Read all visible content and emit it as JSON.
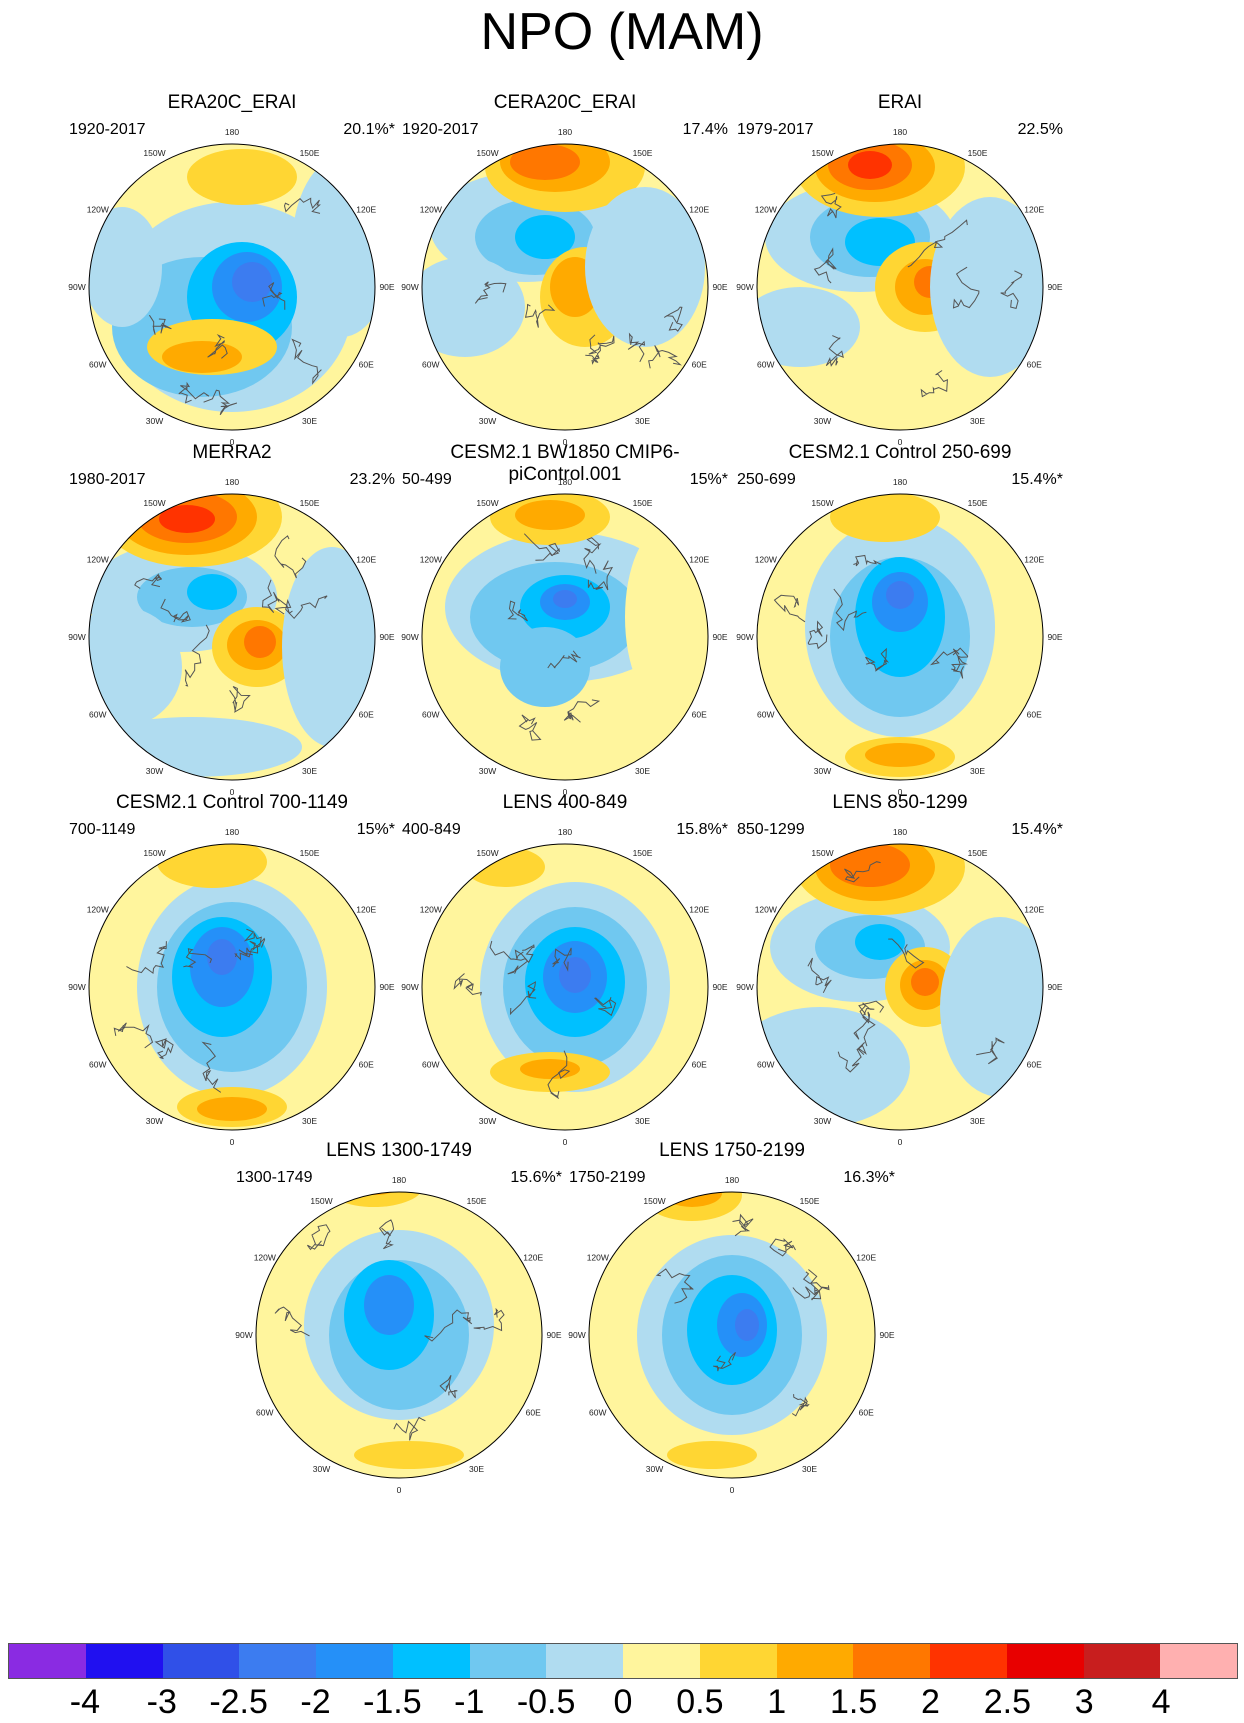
{
  "title": "NPO (MAM)",
  "panels": [
    {
      "title": "ERA20C_ERAI",
      "period": "1920-2017",
      "variance": "20.1%*"
    },
    {
      "title": "CERA20C_ERAI",
      "period": "1920-2017",
      "variance": "17.4%"
    },
    {
      "title": "ERAI",
      "period": "1979-2017",
      "variance": "22.5%"
    },
    {
      "title": "MERRA2",
      "period": "1980-2017",
      "variance": "23.2%"
    },
    {
      "title": "CESM2.1 BW1850 CMIP6-piControl.001",
      "period": "50-499",
      "variance": "15%*"
    },
    {
      "title": "CESM2.1 Control 250-699",
      "period": "250-699",
      "variance": "15.4%*"
    },
    {
      "title": "CESM2.1 Control 700-1149",
      "period": "700-1149",
      "variance": "15%*"
    },
    {
      "title": "LENS 400-849",
      "period": "400-849",
      "variance": "15.8%*"
    },
    {
      "title": "LENS 850-1299",
      "period": "850-1299",
      "variance": "15.4%*"
    },
    {
      "title": "LENS 1300-1749",
      "period": "1300-1749",
      "variance": "15.6%*"
    },
    {
      "title": "LENS 1750-2199",
      "period": "1750-2199",
      "variance": "16.3%*"
    }
  ],
  "longitude_labels": [
    "180",
    "150E",
    "120E",
    "90E",
    "60E",
    "30E",
    "0",
    "30W",
    "60W",
    "90W",
    "120W",
    "150W"
  ],
  "colorbar": {
    "labels": [
      "-4",
      "-3",
      "-2.5",
      "-2",
      "-1.5",
      "-1",
      "-0.5",
      "0",
      "0.5",
      "1",
      "1.5",
      "2",
      "2.5",
      "3",
      "4"
    ],
    "colors": [
      "#8a2be2",
      "#2010f0",
      "#3050e8",
      "#3c7cf0",
      "#2590f8",
      "#00c0ff",
      "#70c8f0",
      "#b0dcf0",
      "#fff59d",
      "#ffd633",
      "#ffaa00",
      "#ff7700",
      "#ff3300",
      "#e80000",
      "#c81e1e",
      "#ffb0b0"
    ]
  },
  "colors": {
    "land_outline": "#555555",
    "background_field": "#fff59d"
  }
}
